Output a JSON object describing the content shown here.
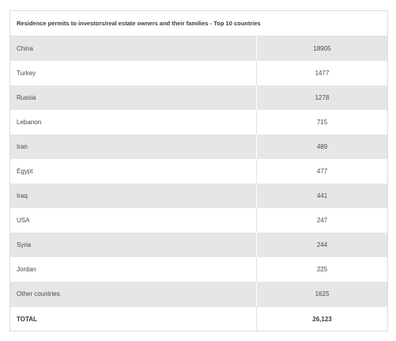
{
  "chart_data": {
    "type": "table",
    "title": "Residence permits to investors/real estate owners and their families - Top 10 countries",
    "rows": [
      {
        "label": "China",
        "value": "18905"
      },
      {
        "label": "Turkey",
        "value": "1477"
      },
      {
        "label": "Russia",
        "value": "1278"
      },
      {
        "label": "Lebanon",
        "value": "715"
      },
      {
        "label": "Iran",
        "value": "489"
      },
      {
        "label": "Egypt",
        "value": "477"
      },
      {
        "label": "Iraq",
        "value": "441"
      },
      {
        "label": "USA",
        "value": "247"
      },
      {
        "label": "Syria",
        "value": "244"
      },
      {
        "label": "Jordan",
        "value": "225"
      },
      {
        "label": "Other countries",
        "value": "1625"
      }
    ],
    "total": {
      "label": "TOTAL",
      "value": "26,123"
    }
  }
}
